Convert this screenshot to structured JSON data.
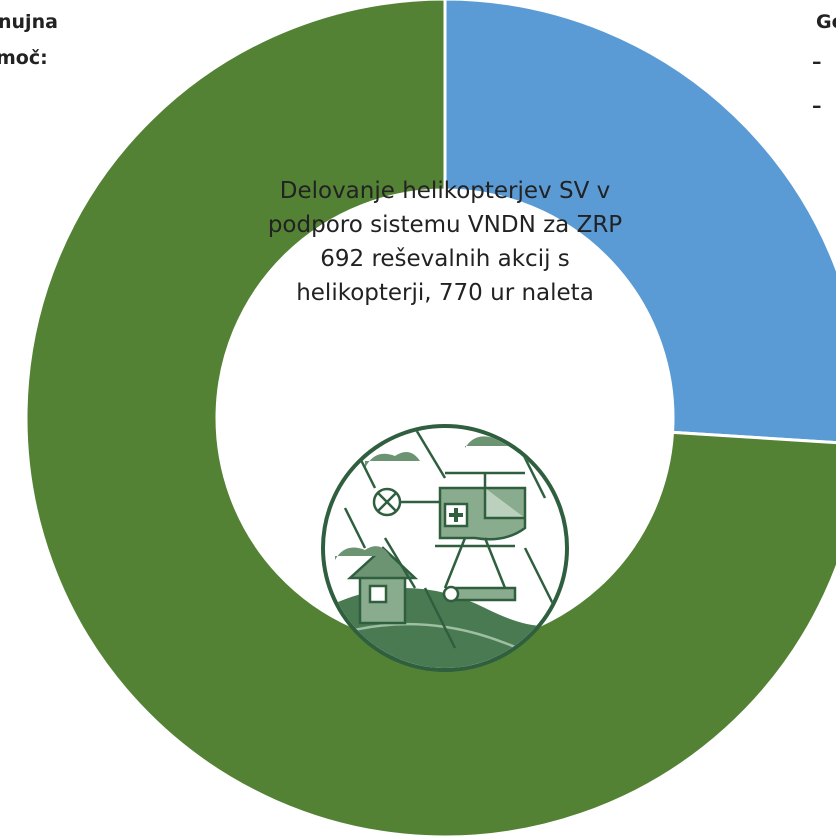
{
  "chart_data": {
    "type": "donut",
    "center_title": "Delovanje helikopterjev SV v podporo sistemu VNDN za ZRP",
    "center_subtitle": "692 reševalnih akcij s helikopterji, 770 ur naleta",
    "categories": [
      null,
      null
    ],
    "series": [
      {
        "name": null,
        "values": [
          26,
          74
        ]
      }
    ],
    "colors": [
      "#5b9bd5",
      "#548235"
    ],
    "left_text": [
      "nujna",
      "moč:",
      "."
    ],
    "right_text": [
      "Ge",
      "–",
      "–"
    ]
  }
}
